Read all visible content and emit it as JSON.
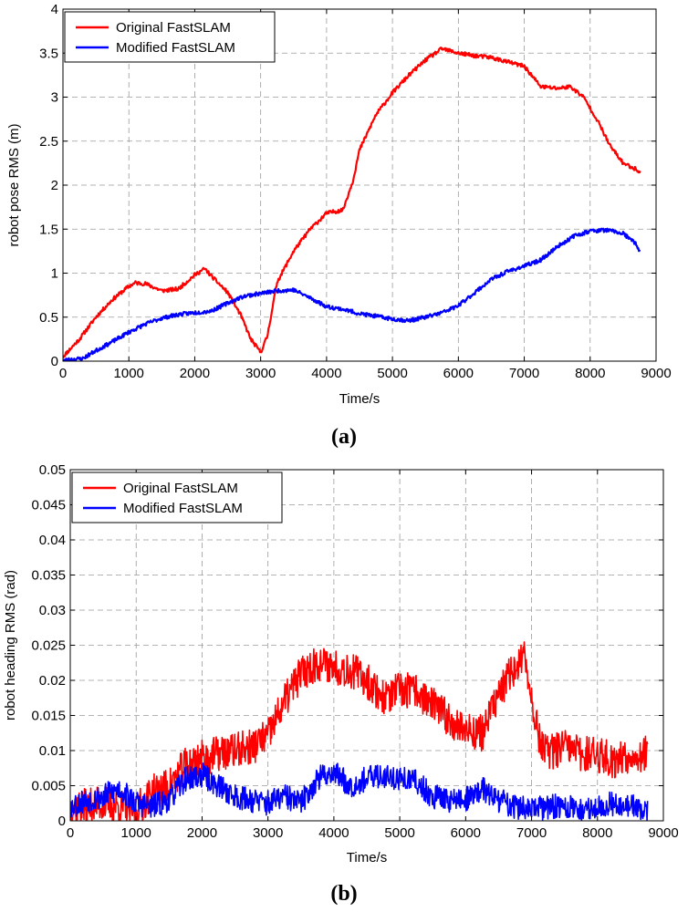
{
  "chart_data": [
    {
      "type": "line",
      "caption": "(a)",
      "title": "",
      "xlabel": "Time/s",
      "ylabel": "robot pose RMS (m)",
      "xlim": [
        0,
        9000
      ],
      "ylim": [
        0,
        4
      ],
      "grid": true,
      "legend_position": "top-left",
      "x_ticks": [
        0,
        1000,
        2000,
        3000,
        4000,
        5000,
        6000,
        7000,
        8000,
        9000
      ],
      "y_ticks": [
        0,
        0.5,
        1,
        1.5,
        2,
        2.5,
        3,
        3.5,
        4
      ],
      "y_tick_labels": [
        "0",
        "0.5",
        "1",
        "1.5",
        "2",
        "2.5",
        "3",
        "3.5",
        "4"
      ],
      "series": [
        {
          "name": "Original FastSLAM",
          "color": "#ff0000",
          "x": [
            0,
            250,
            500,
            750,
            1000,
            1100,
            1250,
            1500,
            1750,
            2000,
            2150,
            2300,
            2500,
            2700,
            2850,
            3000,
            3100,
            3250,
            3500,
            3750,
            4000,
            4250,
            4400,
            4500,
            4750,
            5000,
            5250,
            5500,
            5750,
            6000,
            6250,
            6500,
            6750,
            7000,
            7250,
            7500,
            7700,
            7900,
            8100,
            8300,
            8500,
            8700,
            8760
          ],
          "y": [
            0.05,
            0.25,
            0.5,
            0.7,
            0.85,
            0.89,
            0.88,
            0.8,
            0.82,
            0.98,
            1.05,
            0.93,
            0.78,
            0.52,
            0.25,
            0.1,
            0.28,
            0.9,
            1.25,
            1.5,
            1.68,
            1.72,
            2.05,
            2.4,
            2.8,
            3.05,
            3.25,
            3.42,
            3.55,
            3.5,
            3.47,
            3.45,
            3.4,
            3.35,
            3.12,
            3.1,
            3.12,
            3.0,
            2.75,
            2.45,
            2.25,
            2.18,
            2.15
          ]
        },
        {
          "name": "Modified FastSLAM",
          "color": "#0000ff",
          "x": [
            0,
            300,
            500,
            750,
            1000,
            1250,
            1500,
            1750,
            2000,
            2250,
            2500,
            2750,
            3000,
            3250,
            3500,
            3750,
            4000,
            4250,
            4500,
            4750,
            5000,
            5250,
            5500,
            5750,
            6000,
            6250,
            6500,
            6750,
            7000,
            7250,
            7500,
            7750,
            8000,
            8250,
            8500,
            8700,
            8760
          ],
          "y": [
            0.01,
            0.03,
            0.12,
            0.22,
            0.33,
            0.42,
            0.49,
            0.53,
            0.55,
            0.57,
            0.66,
            0.74,
            0.77,
            0.8,
            0.81,
            0.72,
            0.62,
            0.59,
            0.54,
            0.51,
            0.48,
            0.46,
            0.5,
            0.55,
            0.63,
            0.78,
            0.93,
            1.02,
            1.08,
            1.15,
            1.3,
            1.42,
            1.48,
            1.49,
            1.45,
            1.33,
            1.23
          ]
        }
      ]
    },
    {
      "type": "line",
      "caption": "(b)",
      "title": "",
      "xlabel": "Time/s",
      "ylabel": "robot heading RMS (rad)",
      "xlim": [
        0,
        9000
      ],
      "ylim": [
        0,
        0.05
      ],
      "grid": true,
      "legend_position": "top-left",
      "x_ticks": [
        0,
        1000,
        2000,
        3000,
        4000,
        5000,
        6000,
        7000,
        8000,
        9000
      ],
      "y_ticks": [
        0,
        0.005,
        0.01,
        0.015,
        0.02,
        0.025,
        0.03,
        0.035,
        0.04,
        0.045,
        0.05
      ],
      "y_tick_labels": [
        "0",
        "0.005",
        "0.01",
        "0.015",
        "0.02",
        "0.025",
        "0.03",
        "0.035",
        "0.04",
        "0.045",
        "0.05"
      ],
      "series": [
        {
          "name": "Original FastSLAM",
          "color": "#ff0000",
          "x": [
            0,
            250,
            500,
            750,
            1000,
            1250,
            1500,
            1750,
            2000,
            2250,
            2500,
            2750,
            3000,
            3250,
            3500,
            3750,
            4000,
            4250,
            4500,
            4750,
            5000,
            5250,
            5500,
            5750,
            6000,
            6250,
            6500,
            6750,
            6900,
            7000,
            7100,
            7250,
            7500,
            7750,
            8000,
            8250,
            8500,
            8760
          ],
          "y": [
            0.002,
            0.002,
            0.0025,
            0.002,
            0.0015,
            0.004,
            0.005,
            0.008,
            0.009,
            0.0095,
            0.01,
            0.0105,
            0.012,
            0.017,
            0.021,
            0.0225,
            0.022,
            0.0215,
            0.02,
            0.0175,
            0.0185,
            0.0185,
            0.0165,
            0.0145,
            0.013,
            0.0125,
            0.018,
            0.022,
            0.023,
            0.018,
            0.012,
            0.0095,
            0.0105,
            0.0095,
            0.0095,
            0.0085,
            0.0095,
            0.0095
          ],
          "noise": 0.0026
        },
        {
          "name": "Modified FastSLAM",
          "color": "#0000ff",
          "x": [
            0,
            250,
            500,
            750,
            1000,
            1250,
            1500,
            1750,
            2000,
            2250,
            2500,
            2750,
            3000,
            3250,
            3500,
            3750,
            4000,
            4250,
            4500,
            4750,
            5000,
            5250,
            5500,
            5750,
            6000,
            6250,
            6500,
            6750,
            7000,
            7250,
            7500,
            7750,
            8000,
            8250,
            8500,
            8760
          ],
          "y": [
            0.002,
            0.003,
            0.0035,
            0.0045,
            0.0025,
            0.002,
            0.003,
            0.006,
            0.0065,
            0.005,
            0.0035,
            0.003,
            0.0025,
            0.0035,
            0.0025,
            0.006,
            0.007,
            0.005,
            0.006,
            0.0065,
            0.006,
            0.0055,
            0.0035,
            0.003,
            0.003,
            0.0045,
            0.003,
            0.002,
            0.0015,
            0.002,
            0.002,
            0.0015,
            0.002,
            0.0025,
            0.002,
            0.0015
          ],
          "noise": 0.0018
        }
      ]
    }
  ]
}
